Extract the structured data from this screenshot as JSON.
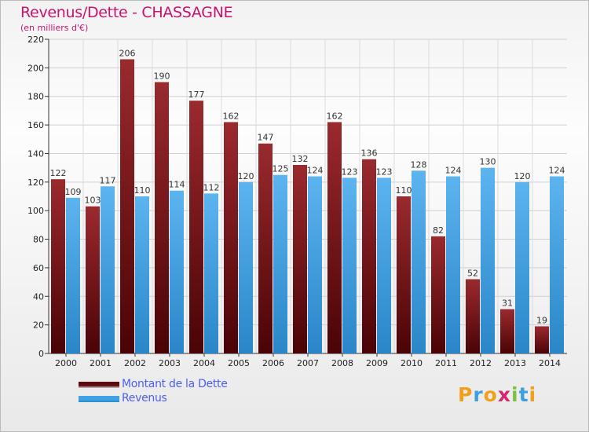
{
  "title": "Revenus/Dette - CHASSAGNE",
  "subtitle": "(en milliers d'€)",
  "chart_data": {
    "type": "bar",
    "categories": [
      "2000",
      "2001",
      "2002",
      "2003",
      "2004",
      "2005",
      "2006",
      "2007",
      "2008",
      "2009",
      "2010",
      "2011",
      "2012",
      "2013",
      "2014"
    ],
    "series": [
      {
        "name": "Montant de la Dette",
        "color": "#8a1c20",
        "values": [
          122,
          103,
          206,
          190,
          177,
          162,
          147,
          132,
          162,
          136,
          110,
          82,
          52,
          31,
          19
        ]
      },
      {
        "name": "Revenus",
        "color": "#4aa8e8",
        "values": [
          109,
          117,
          110,
          114,
          112,
          120,
          125,
          124,
          123,
          123,
          128,
          124,
          130,
          120,
          124
        ]
      }
    ],
    "ylim": [
      0,
      220
    ],
    "yticks": [
      0,
      20,
      40,
      60,
      80,
      100,
      120,
      140,
      160,
      180,
      200,
      220
    ],
    "grid": true,
    "data_labels": true,
    "legend_position": "bottom-left"
  },
  "legend": [
    {
      "label": "Montant de la Dette",
      "color_top": "#5a0a0e",
      "color_bottom": "#c9c9c9"
    },
    {
      "label": "Revenus",
      "color_top": "#3fa3e3",
      "color_bottom": "#2a88cc"
    }
  ],
  "logo": {
    "letters": [
      "P",
      "r",
      "o",
      "x",
      "i",
      "t",
      "i"
    ],
    "colors": [
      "#f1a01a",
      "#3b9fe0",
      "#f1a01a",
      "#d42a6b",
      "#7cc13d",
      "#3b9fe0",
      "#f1a01a"
    ]
  }
}
